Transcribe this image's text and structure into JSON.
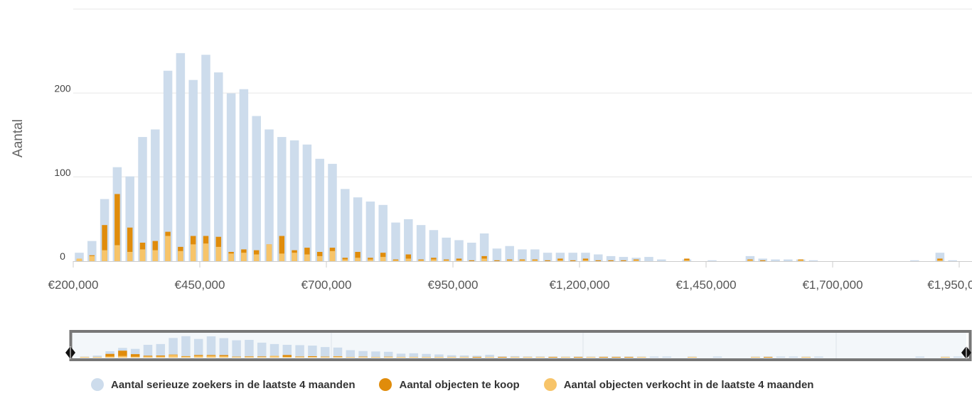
{
  "chart_data": {
    "type": "bar",
    "stacked_overlay": true,
    "ylabel": "Aantal",
    "y_ticks": [
      0,
      100,
      200
    ],
    "ylim": [
      0,
      300
    ],
    "x_ticks": [
      "€200,000",
      "€450,000",
      "€700,000",
      "€950,000",
      "€1,200,000",
      "€1,450,000",
      "€1,700,000",
      "€1,950,0â€¦"
    ],
    "x_tick_values": [
      200000,
      450000,
      700000,
      950000,
      1200000,
      1450000,
      1700000,
      1950000
    ],
    "x_start": 200000,
    "bin_width": 25000,
    "series": [
      {
        "name": "Aantal serieuze zoekers in de laatste 4 maanden",
        "color": "#cddcec",
        "values": [
          10,
          24,
          74,
          112,
          101,
          148,
          157,
          227,
          248,
          216,
          246,
          225,
          200,
          205,
          173,
          157,
          148,
          144,
          139,
          122,
          116,
          86,
          76,
          71,
          67,
          46,
          50,
          43,
          37,
          28,
          25,
          22,
          33,
          15,
          18,
          14,
          14,
          10,
          10,
          10,
          10,
          8,
          6,
          5,
          4,
          5,
          2,
          0,
          2,
          0,
          1,
          0,
          0,
          6,
          3,
          2,
          2,
          2,
          1,
          0,
          0,
          0,
          0,
          0,
          0,
          0,
          1,
          0,
          10,
          1,
          0,
          1,
          1,
          1,
          1,
          0
        ]
      },
      {
        "name": "Aantal objecten te koop",
        "color": "#e08c0b",
        "values": [
          2,
          7,
          43,
          80,
          40,
          22,
          24,
          35,
          17,
          30,
          30,
          29,
          11,
          14,
          13,
          20,
          30,
          13,
          16,
          11,
          16,
          4,
          11,
          4,
          10,
          2,
          8,
          2,
          4,
          2,
          3,
          1,
          6,
          1,
          2,
          2,
          2,
          1,
          3,
          1,
          3,
          1,
          1,
          1,
          2,
          0,
          0,
          0,
          3,
          0,
          0,
          0,
          0,
          2,
          1,
          0,
          0,
          2,
          0,
          0,
          0,
          0,
          0,
          0,
          0,
          0,
          0,
          0,
          3,
          0,
          0,
          0,
          0,
          0,
          0,
          0
        ]
      },
      {
        "name": "Aantal objecten verkocht in de laatste 4 maanden",
        "color": "#f7c469",
        "values": [
          3,
          6,
          13,
          19,
          11,
          14,
          13,
          30,
          12,
          20,
          21,
          17,
          9,
          10,
          8,
          20,
          9,
          10,
          8,
          6,
          12,
          2,
          4,
          2,
          5,
          1,
          3,
          1,
          2,
          1,
          1,
          0,
          3,
          0,
          1,
          1,
          1,
          0,
          1,
          0,
          1,
          0,
          0,
          0,
          1,
          0,
          0,
          0,
          1,
          0,
          0,
          0,
          0,
          1,
          0,
          0,
          0,
          1,
          0,
          0,
          0,
          0,
          0,
          0,
          0,
          0,
          0,
          0,
          1,
          0,
          0,
          0,
          0,
          0,
          0,
          0
        ]
      }
    ],
    "grid": true,
    "legend_position": "bottom"
  },
  "navigator": {
    "left_handle_icon": "diamond-handle-icon",
    "right_handle_icon": "diamond-handle-icon"
  }
}
